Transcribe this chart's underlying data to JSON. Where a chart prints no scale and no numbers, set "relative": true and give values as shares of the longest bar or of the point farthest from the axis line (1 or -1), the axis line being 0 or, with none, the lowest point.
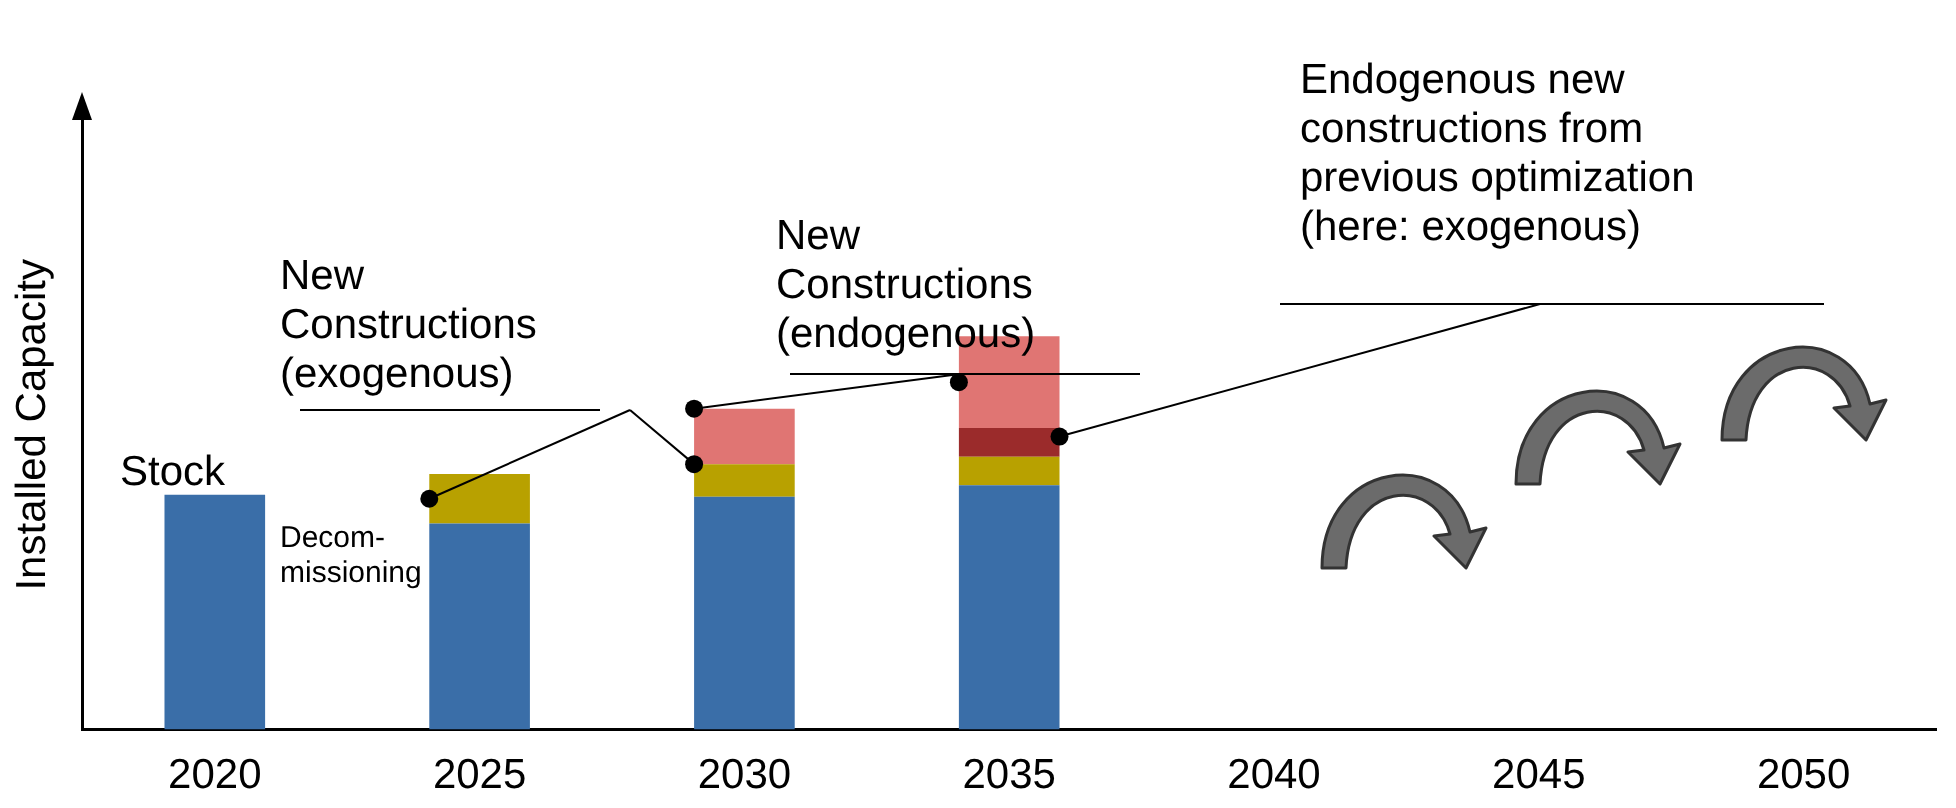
{
  "chart_data": {
    "type": "bar",
    "stacked": true,
    "relative": true,
    "ylabel": "Installed Capacity",
    "grid": false,
    "legend": false,
    "categories": [
      "2020",
      "2025",
      "2030",
      "2035",
      "2040",
      "2045",
      "2050"
    ],
    "series": [
      {
        "color": "#3a6ea8",
        "values": [
          0.597,
          0.524,
          0.592,
          0.621,
          null,
          null,
          null
        ]
      },
      {
        "color": "#b8a100",
        "values": [
          null,
          0.126,
          0.083,
          0.073,
          null,
          null,
          null
        ]
      },
      {
        "color": "#9b2b2b",
        "values": [
          null,
          null,
          null,
          0.073,
          null,
          null,
          null
        ]
      },
      {
        "color": "#e07573",
        "values": [
          null,
          null,
          0.141,
          0.233,
          null,
          null,
          null
        ]
      }
    ],
    "annotations": [
      "Stock",
      "Decom-\nmissioning",
      "New\nConstructions\n(exogenous)",
      "New\nConstructions\n(endogenous)",
      "Endogenous new\nconstructions from\nprevious optimization\n(here: exogenous)"
    ]
  }
}
